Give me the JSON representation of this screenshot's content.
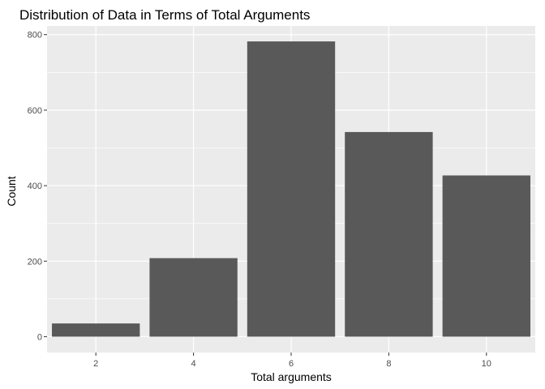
{
  "chart_data": {
    "type": "bar",
    "title": "Distribution of Data in Terms of Total Arguments",
    "xlabel": "Total arguments",
    "ylabel": "Count",
    "categories": [
      "2",
      "4",
      "6",
      "8",
      "10"
    ],
    "x": [
      2,
      4,
      6,
      8,
      10
    ],
    "values": [
      35,
      208,
      782,
      542,
      427
    ],
    "xlim": [
      1,
      11
    ],
    "ylim": [
      -42,
      823
    ],
    "x_ticks": [
      2,
      4,
      6,
      8,
      10
    ],
    "y_ticks": [
      0,
      200,
      400,
      600,
      800
    ],
    "grid": true,
    "colors": {
      "panel": "#ebebeb",
      "grid": "#ffffff",
      "bar": "#595959",
      "tick": "#333333"
    }
  }
}
